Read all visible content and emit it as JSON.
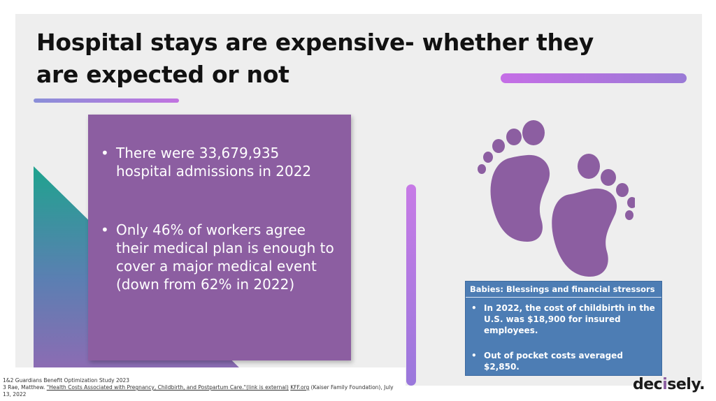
{
  "slide": {
    "title": "Hospital stays are expensive- whether they are expected or not",
    "bullets": [
      "There were 33,679,935 hospital admissions in 2022",
      "Only 46% of workers agree their medical plan is enough to cover a major medical event (down from 62% in 2022)"
    ],
    "bullet_glyph": "•",
    "icon": "baby-feet-icon",
    "info_box": {
      "title": "Babies: Blessings and financial stressors",
      "bullets": [
        "In 2022, the cost of childbirth in the U.S. was $18,900 for insured employees.",
        "Out of pocket costs averaged $2,850."
      ]
    }
  },
  "footnotes": {
    "line1": "1&2  Guardians Benefit Optimization Study 2023",
    "line2_prefix": "3 Rae, Matthew. ",
    "line2_link": "\"Health Costs Associated with Pregnancy, Childbirth, and Postpartum Care.\"(link is external)",
    "line2_site": "KFF.org",
    "line2_suffix": " (Kaiser Family Foundation), July 13, 2022"
  },
  "logo": {
    "pre": "dec",
    "mark": "i",
    "post": "sely."
  },
  "colors": {
    "panel": "#8c5ea1",
    "info_box": "#4d7db4",
    "accent": "#c173e0",
    "teal": "#1fa38e"
  }
}
